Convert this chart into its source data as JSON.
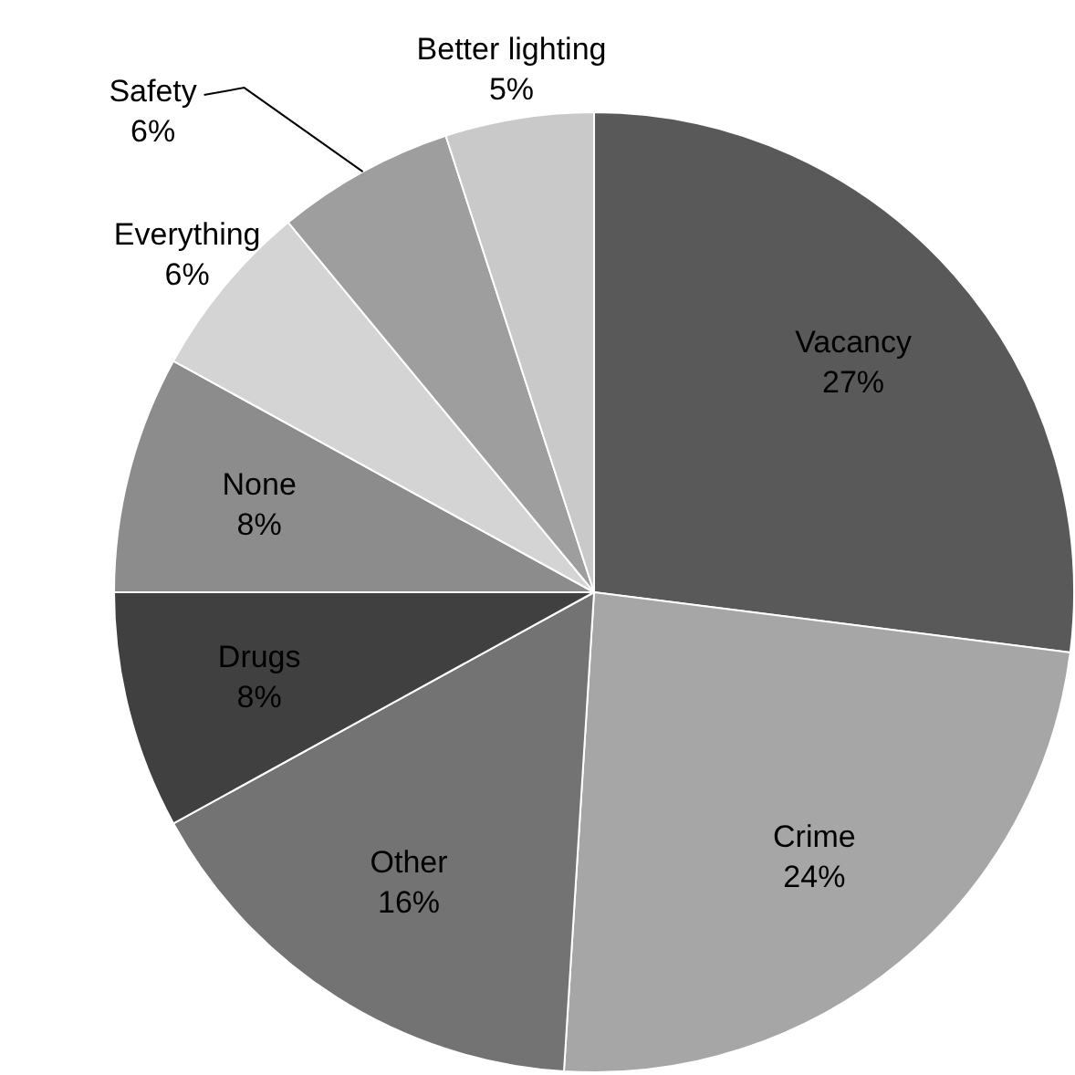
{
  "chart_data": {
    "type": "pie",
    "categories": [
      "Vacancy",
      "Crime",
      "Other",
      "Drugs",
      "None",
      "Everything",
      "Safety",
      "Better lighting"
    ],
    "values": [
      27,
      24,
      16,
      8,
      8,
      6,
      6,
      5
    ],
    "value_labels": [
      "27%",
      "24%",
      "16%",
      "8%",
      "8%",
      "6%",
      "6%",
      "5%"
    ],
    "colors": [
      "#595959",
      "#a6a6a6",
      "#737373",
      "#404040",
      "#8c8c8c",
      "#d4d4d4",
      "#9e9e9e",
      "#c9c9c9"
    ]
  }
}
